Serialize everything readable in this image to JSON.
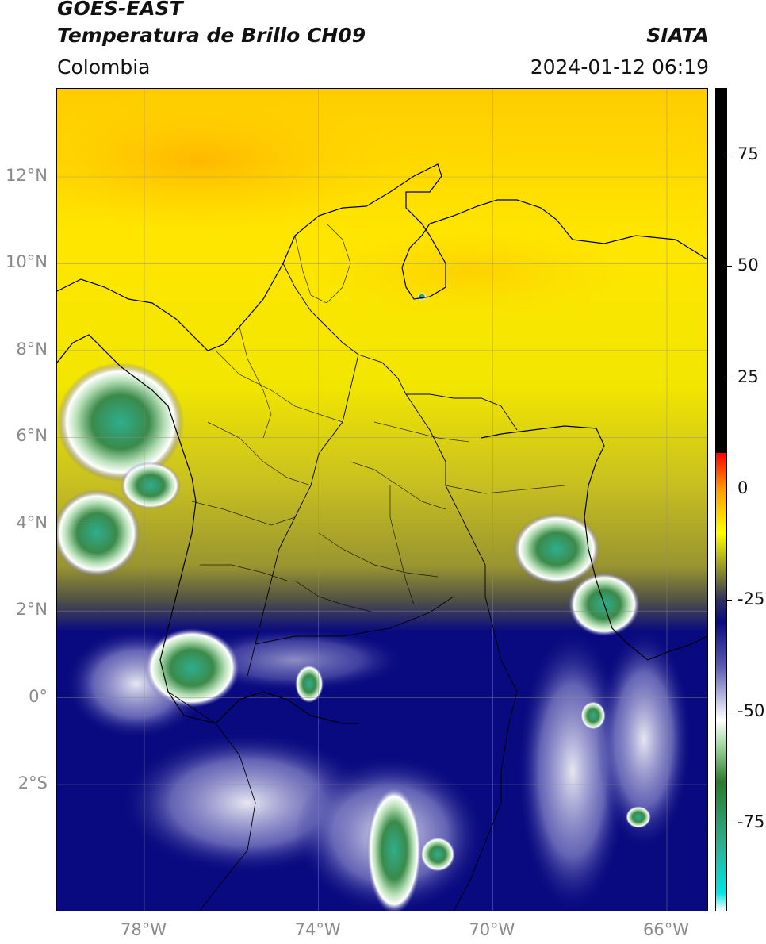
{
  "header": {
    "title_line1": "GOES-EAST",
    "title_line2": "Temperatura de Brillo CH09",
    "subtitle": "Colombia",
    "organization": "SIATA",
    "timestamp": "2024-01-12 06:19"
  },
  "map": {
    "lon_range": [
      -80,
      -65
    ],
    "lat_range": [
      -5,
      14
    ],
    "lat_ticks": [
      {
        "value": 12,
        "label": "12°N"
      },
      {
        "value": 10,
        "label": "10°N"
      },
      {
        "value": 8,
        "label": "8°N"
      },
      {
        "value": 6,
        "label": "6°N"
      },
      {
        "value": 4,
        "label": "4°N"
      },
      {
        "value": 2,
        "label": "2°N"
      },
      {
        "value": 0,
        "label": "0°"
      },
      {
        "value": -2,
        "label": "2°S"
      }
    ],
    "lon_ticks": [
      {
        "value": -78,
        "label": "78°W"
      },
      {
        "value": -74,
        "label": "74°W"
      },
      {
        "value": -70,
        "label": "70°W"
      },
      {
        "value": -66,
        "label": "66°W"
      }
    ],
    "gridlines": true
  },
  "colorbar": {
    "range": [
      -95,
      90
    ],
    "ticks": [
      {
        "value": 75,
        "label": "75"
      },
      {
        "value": 50,
        "label": "50"
      },
      {
        "value": 25,
        "label": "25"
      },
      {
        "value": 0,
        "label": "0"
      },
      {
        "value": -25,
        "label": "-25"
      },
      {
        "value": -50,
        "label": "-50"
      },
      {
        "value": -75,
        "label": "-75"
      }
    ],
    "stops": [
      {
        "value": -95,
        "color": "#ffffff"
      },
      {
        "value": -91,
        "color": "#00e5e5"
      },
      {
        "value": -80,
        "color": "#2fae8e"
      },
      {
        "value": -66,
        "color": "#2a7a2a"
      },
      {
        "value": -58,
        "color": "#9fd69f"
      },
      {
        "value": -52,
        "color": "#ffffff"
      },
      {
        "value": -40,
        "color": "#5a5ab4"
      },
      {
        "value": -30,
        "color": "#0a0a80"
      },
      {
        "value": -25,
        "color": "#303060"
      },
      {
        "value": -20,
        "color": "#777733"
      },
      {
        "value": -10,
        "color": "#ffff00"
      },
      {
        "value": 0,
        "color": "#ff9900"
      },
      {
        "value": 8,
        "color": "#ff0000"
      },
      {
        "value": 8.01,
        "color": "#000000"
      },
      {
        "value": 90,
        "color": "#000000"
      }
    ]
  }
}
